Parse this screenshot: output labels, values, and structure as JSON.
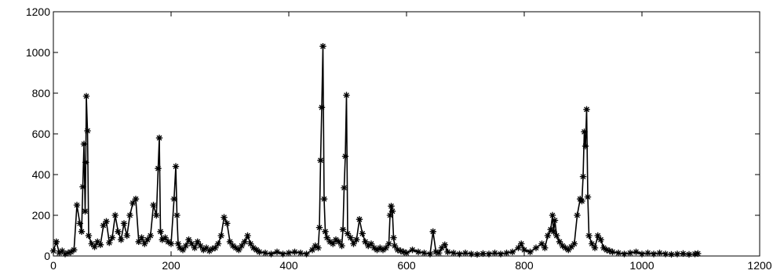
{
  "chart_data": {
    "type": "line",
    "title": "",
    "xlabel": "",
    "ylabel": "",
    "xlim": [
      0,
      1200
    ],
    "ylim": [
      0,
      1200
    ],
    "xticks": [
      0,
      200,
      400,
      600,
      800,
      1000,
      1200
    ],
    "yticks": [
      0,
      200,
      400,
      600,
      800,
      1000,
      1200
    ],
    "xtick_labels": [
      "0",
      "200",
      "400",
      "600",
      "800",
      "1000",
      "1200"
    ],
    "ytick_labels": [
      "0",
      "200",
      "400",
      "600",
      "800",
      "1000",
      "1200"
    ],
    "grid": false,
    "marker": "*",
    "color": "#000000",
    "series": [
      {
        "x": [
          0,
          5,
          10,
          15,
          20,
          25,
          30,
          35,
          40,
          45,
          48,
          50,
          52,
          54,
          55,
          56,
          58,
          60,
          65,
          70,
          75,
          80,
          85,
          90,
          95,
          100,
          105,
          110,
          115,
          120,
          125,
          130,
          135,
          140,
          145,
          150,
          155,
          160,
          165,
          170,
          175,
          178,
          180,
          182,
          185,
          190,
          195,
          200,
          205,
          208,
          210,
          212,
          215,
          220,
          225,
          230,
          235,
          240,
          245,
          250,
          255,
          260,
          265,
          270,
          275,
          280,
          285,
          290,
          295,
          300,
          305,
          310,
          315,
          320,
          325,
          330,
          335,
          340,
          345,
          350,
          360,
          370,
          380,
          390,
          400,
          410,
          420,
          430,
          440,
          445,
          450,
          452,
          454,
          456,
          458,
          460,
          462,
          465,
          470,
          475,
          480,
          485,
          490,
          492,
          494,
          496,
          498,
          500,
          505,
          510,
          515,
          520,
          525,
          530,
          535,
          540,
          545,
          550,
          555,
          560,
          565,
          570,
          572,
          574,
          576,
          578,
          580,
          585,
          590,
          595,
          600,
          610,
          620,
          630,
          640,
          645,
          650,
          655,
          660,
          665,
          670,
          680,
          690,
          700,
          710,
          720,
          730,
          740,
          750,
          760,
          770,
          780,
          790,
          795,
          800,
          810,
          820,
          830,
          835,
          840,
          845,
          848,
          850,
          852,
          855,
          860,
          865,
          870,
          875,
          880,
          885,
          890,
          895,
          898,
          900,
          902,
          904,
          906,
          908,
          910,
          915,
          920,
          925,
          930,
          935,
          940,
          945,
          950,
          960,
          970,
          980,
          990,
          1000,
          1010,
          1020,
          1030,
          1040,
          1050,
          1060,
          1070,
          1080,
          1090,
          1095
        ],
        "y": [
          25,
          70,
          15,
          25,
          10,
          15,
          20,
          30,
          250,
          160,
          120,
          340,
          550,
          220,
          460,
          785,
          615,
          100,
          60,
          45,
          70,
          55,
          150,
          170,
          65,
          90,
          200,
          120,
          80,
          160,
          100,
          200,
          260,
          280,
          70,
          90,
          60,
          80,
          100,
          250,
          200,
          430,
          580,
          120,
          80,
          90,
          70,
          60,
          280,
          440,
          200,
          60,
          40,
          30,
          50,
          80,
          60,
          40,
          70,
          50,
          30,
          40,
          25,
          35,
          40,
          60,
          100,
          190,
          160,
          70,
          50,
          40,
          30,
          50,
          70,
          100,
          60,
          40,
          30,
          20,
          15,
          10,
          20,
          10,
          15,
          20,
          15,
          10,
          30,
          50,
          40,
          140,
          470,
          730,
          1030,
          280,
          120,
          90,
          70,
          60,
          80,
          70,
          50,
          130,
          335,
          490,
          790,
          110,
          90,
          60,
          80,
          180,
          110,
          70,
          50,
          60,
          40,
          30,
          40,
          30,
          40,
          60,
          200,
          245,
          220,
          90,
          50,
          30,
          25,
          20,
          15,
          30,
          20,
          15,
          10,
          120,
          20,
          15,
          40,
          55,
          20,
          15,
          10,
          15,
          10,
          8,
          12,
          10,
          15,
          10,
          15,
          20,
          40,
          60,
          30,
          20,
          40,
          60,
          40,
          100,
          130,
          200,
          120,
          175,
          100,
          70,
          50,
          40,
          30,
          45,
          60,
          200,
          280,
          270,
          390,
          610,
          540,
          720,
          290,
          100,
          60,
          40,
          100,
          80,
          40,
          30,
          25,
          20,
          15,
          10,
          15,
          20,
          10,
          15,
          10,
          15,
          10,
          8,
          10,
          12,
          8,
          10,
          12
        ]
      }
    ]
  }
}
